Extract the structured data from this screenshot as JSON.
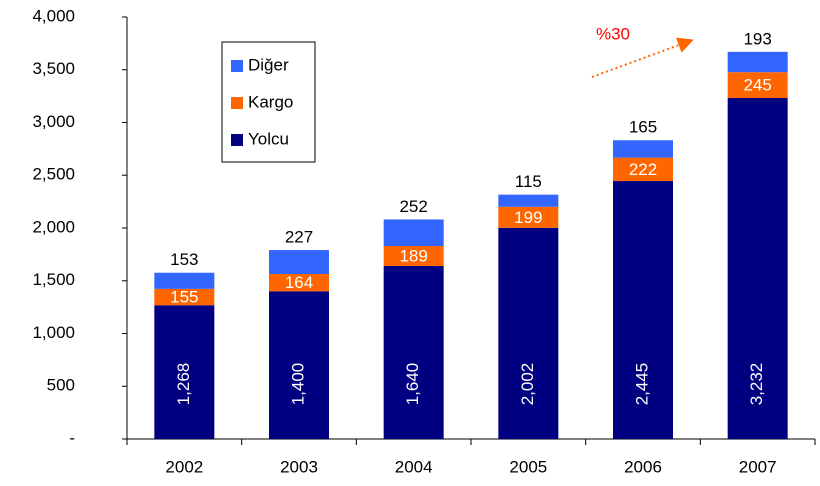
{
  "chart_data": {
    "type": "bar",
    "stacked": true,
    "categories": [
      "2002",
      "2003",
      "2004",
      "2005",
      "2006",
      "2007"
    ],
    "series": [
      {
        "name": "Yolcu",
        "color": "#000080",
        "values": [
          1268,
          1400,
          1640,
          2002,
          2445,
          3232
        ],
        "value_labels": [
          "1,268",
          "1,400",
          "1,640",
          "2,002",
          "2,445",
          "3,232"
        ]
      },
      {
        "name": "Kargo",
        "color": "#ff6600",
        "values": [
          155,
          164,
          189,
          199,
          222,
          245
        ]
      },
      {
        "name": "Diğer",
        "color": "#3366ff",
        "values": [
          153,
          227,
          252,
          115,
          165,
          193
        ]
      }
    ],
    "ylim": [
      0,
      4000
    ],
    "yticks": [
      {
        "value": 0,
        "label": "-"
      },
      500,
      {
        "value": 1000,
        "label": "1,000"
      },
      {
        "value": 1500,
        "label": "1,500"
      },
      {
        "value": 2000,
        "label": "2,000"
      },
      {
        "value": 2500,
        "label": "2,500"
      },
      {
        "value": 3000,
        "label": "3,000"
      },
      {
        "value": 3500,
        "label": "3,500"
      },
      {
        "value": 4000,
        "label": "4,000"
      }
    ],
    "grid": false,
    "annotation": "%30",
    "annotation_color": "#ff0000"
  }
}
